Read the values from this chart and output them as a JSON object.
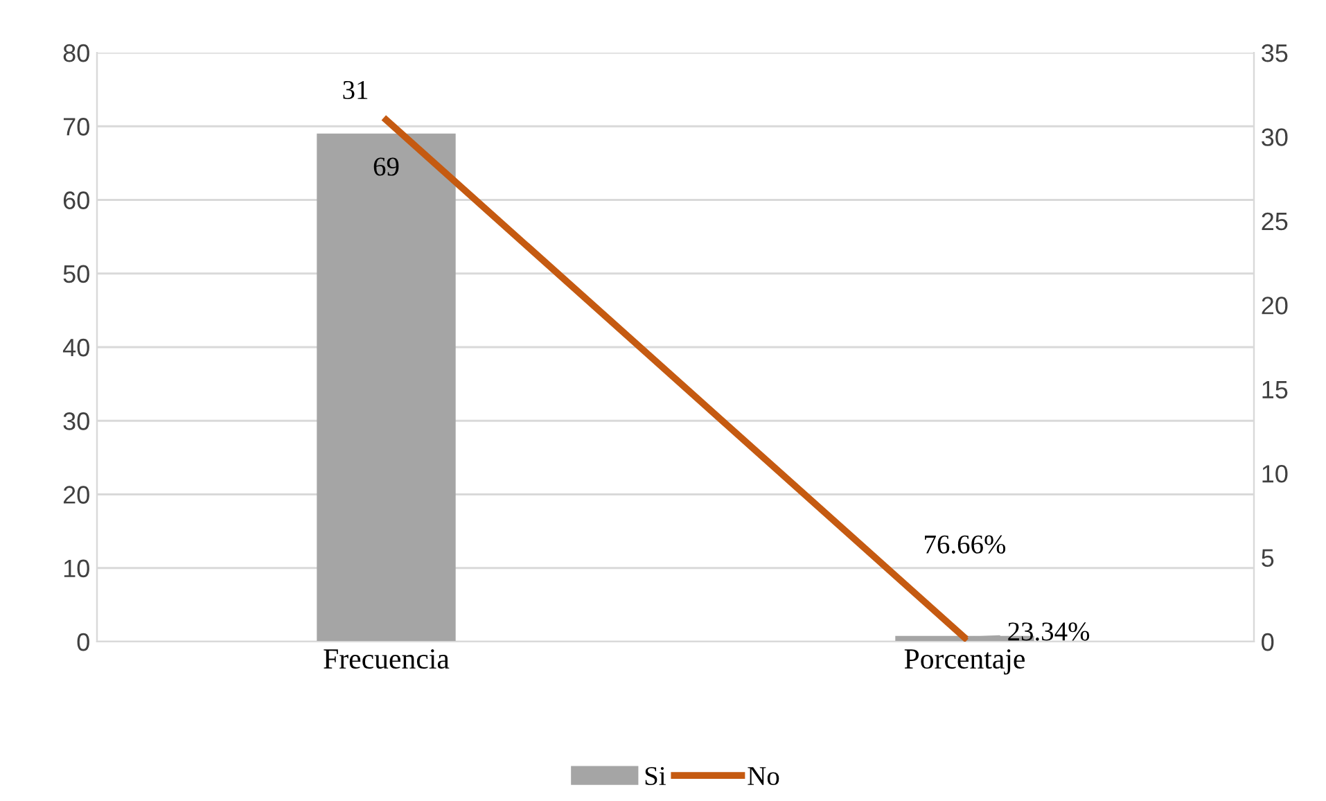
{
  "chart_data": {
    "type": "bar",
    "categories": [
      "Frecuencia",
      "Porcentaje"
    ],
    "series": [
      {
        "name": "Si",
        "color": "#a5a5a5",
        "values": [
          69,
          0.7666
        ],
        "value_labels": [
          "69",
          "76.66%"
        ]
      },
      {
        "name": "No",
        "type": "line",
        "axis": "y2",
        "color": "#c55a11",
        "values": [
          31,
          0.2334
        ],
        "value_labels": [
          "31",
          "23.34%"
        ]
      }
    ],
    "ylim": [
      0,
      80
    ],
    "yticks": [
      0,
      10,
      20,
      30,
      40,
      50,
      60,
      70,
      80
    ],
    "y2lim": [
      0,
      35
    ],
    "y2ticks": [
      0,
      5,
      10,
      15,
      20,
      25,
      30,
      35
    ],
    "grid": "y",
    "legend": "bottom",
    "marker": "none",
    "line_style": "solid"
  }
}
